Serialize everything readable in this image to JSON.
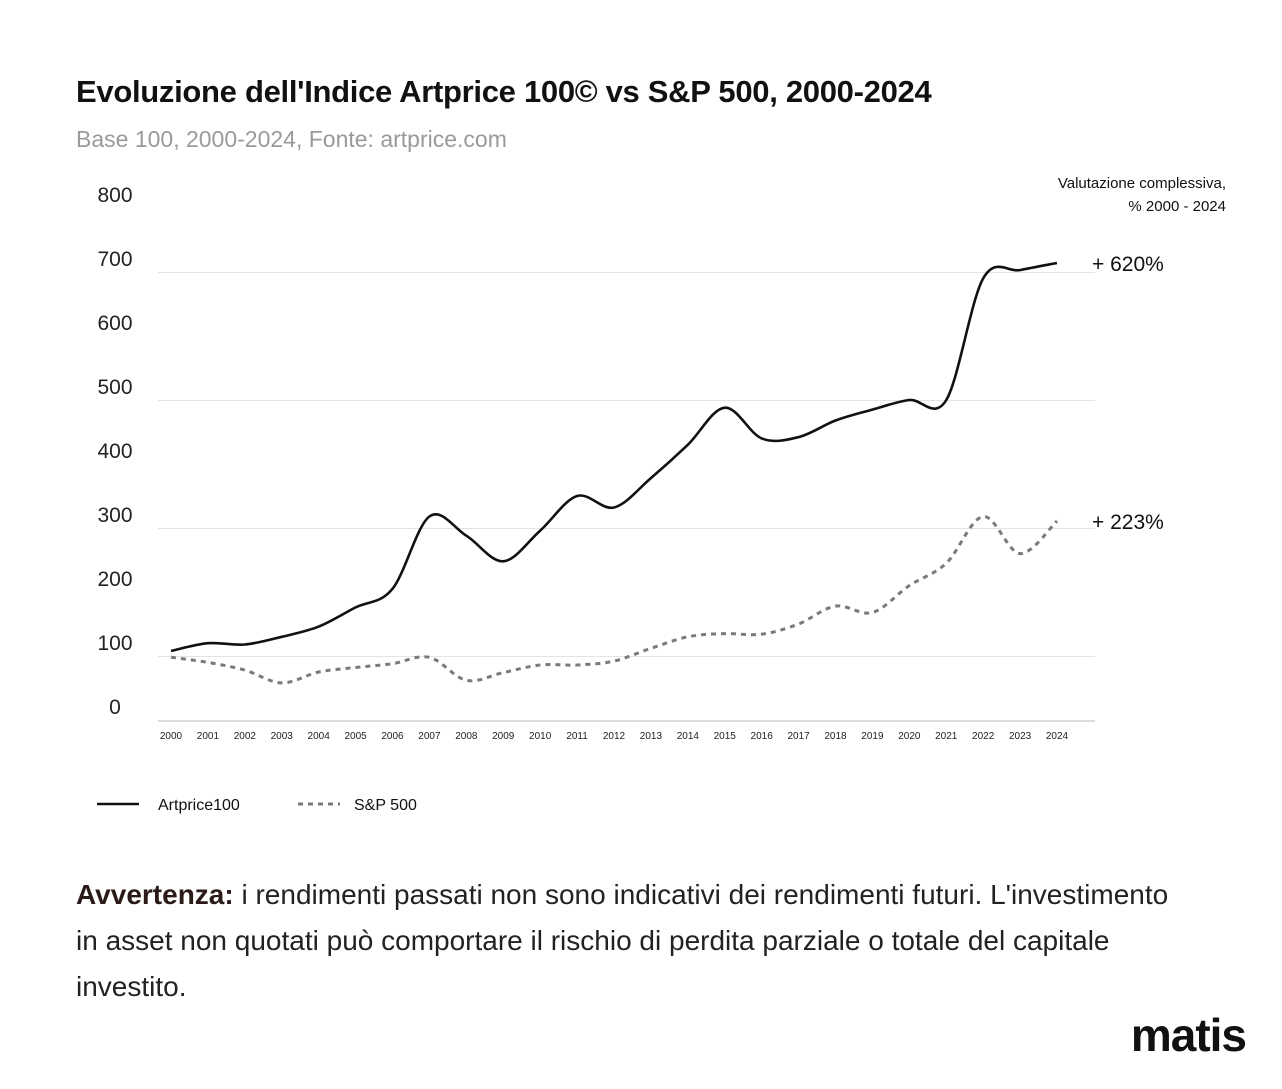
{
  "chart_data": {
    "type": "line",
    "title": "Evoluzione dell'Indice Artprice 100© vs S&P 500, 2000-2024",
    "subtitle": "Base 100, 2000-2024, Fonte: artprice.com",
    "xlabel": "",
    "ylabel": "",
    "x": [
      "2000",
      "2001",
      "2002",
      "2003",
      "2004",
      "2005",
      "2006",
      "2007",
      "2008",
      "2009",
      "2010",
      "2011",
      "2012",
      "2013",
      "2014",
      "2015",
      "2016",
      "2017",
      "2018",
      "2019",
      "2020",
      "2021",
      "2022",
      "2023",
      "2024"
    ],
    "yticks": [
      "0",
      "100",
      "200",
      "300",
      "400",
      "500",
      "600",
      "700",
      "800"
    ],
    "ylim": [
      0,
      800
    ],
    "grid": true,
    "legend_position": "bottom-left",
    "series": [
      {
        "name": "Artprice100",
        "style": "solid",
        "color": "#111111",
        "values": [
          108,
          120,
          118,
          130,
          146,
          176,
          205,
          318,
          288,
          248,
          296,
          350,
          332,
          378,
          430,
          488,
          440,
          442,
          468,
          485,
          500,
          500,
          690,
          703,
          714
        ],
        "end_label": "+ 620%"
      },
      {
        "name": "S&P 500",
        "style": "dashed",
        "color": "#7a7a7a",
        "values": [
          98,
          90,
          78,
          58,
          75,
          82,
          88,
          98,
          62,
          74,
          86,
          86,
          92,
          112,
          130,
          135,
          134,
          150,
          178,
          168,
          210,
          245,
          318,
          260,
          311
        ],
        "end_label": "+ 223%"
      }
    ],
    "annotation": {
      "line1": "Valutazione complessiva,",
      "line2": "% 2000 - 2024"
    }
  },
  "disclaimer": {
    "bold": "Avvertenza:",
    "text": " i rendimenti passati non sono indicativi dei rendimenti futuri. L'investimento in asset non quotati può comportare il rischio di perdita parziale o totale del capitale investito."
  },
  "brand": "matis"
}
